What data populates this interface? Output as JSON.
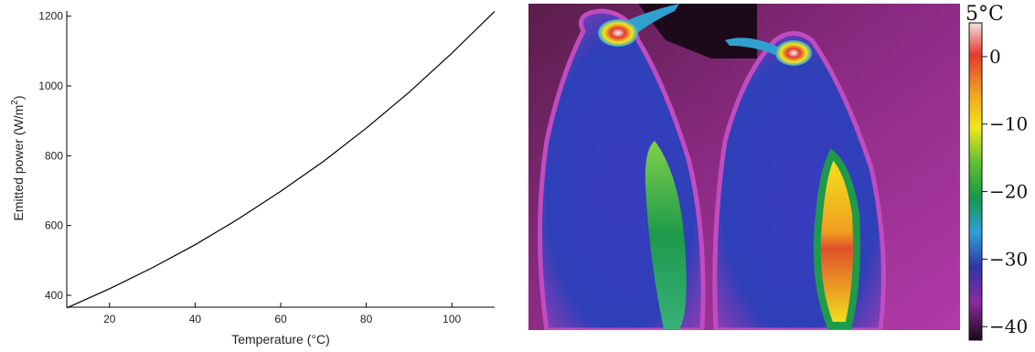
{
  "chart_data": {
    "type": "line",
    "title": "",
    "xlabel": "Temperature (°C)",
    "ylabel": "Emitted power (W/m²)",
    "ylabel_main": "Emitted power (W/m",
    "ylabel_sup": "2",
    "ylabel_tail": ")",
    "xlim": [
      10,
      110
    ],
    "ylim": [
      366,
      1215
    ],
    "xticks": [
      20,
      40,
      60,
      80,
      100
    ],
    "yticks": [
      400,
      600,
      800,
      1000,
      1200
    ],
    "grid": false,
    "series": [
      {
        "x": [
          10,
          20,
          30,
          40,
          50,
          60,
          70,
          80,
          90,
          100,
          110
        ],
        "y": [
          364,
          419,
          479,
          545,
          618,
          698,
          784,
          879,
          982,
          1094,
          1214
        ]
      }
    ],
    "line_color": "#000000"
  },
  "thermal_image": {
    "subject": "thermal image of two penguins",
    "colorbar": {
      "title": "5°C",
      "ticks": [
        "0",
        "−10",
        "−20",
        "−30",
        "−40"
      ],
      "tick_values": [
        0,
        -10,
        -20,
        -30,
        -40
      ],
      "range": [
        -42,
        5
      ],
      "gradient": [
        {
          "value": 5,
          "color": "#f4e0e0"
        },
        {
          "value": 0,
          "color": "#e23a2f"
        },
        {
          "value": -5,
          "color": "#f0a020"
        },
        {
          "value": -10,
          "color": "#f2e61c"
        },
        {
          "value": -15,
          "color": "#5fc030"
        },
        {
          "value": -20,
          "color": "#17984a"
        },
        {
          "value": -25,
          "color": "#2f9fd8"
        },
        {
          "value": -30,
          "color": "#3036a8"
        },
        {
          "value": -35,
          "color": "#8a2aa0"
        },
        {
          "value": -42,
          "color": "#1a0a16"
        }
      ]
    }
  }
}
